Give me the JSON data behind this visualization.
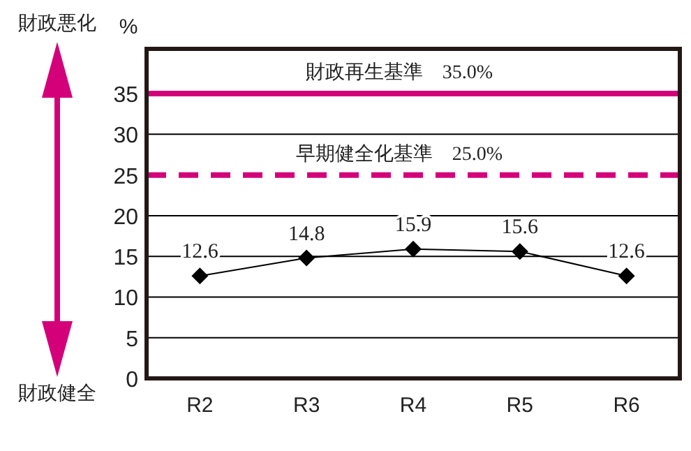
{
  "chart_data": {
    "type": "line",
    "ylabel": "%",
    "categories": [
      "R2",
      "R3",
      "R4",
      "R5",
      "R6"
    ],
    "series": [
      {
        "color": "#000000",
        "values": [
          12.6,
          14.8,
          15.9,
          15.6,
          12.6
        ]
      }
    ],
    "data_labels": true,
    "marker": "diamond",
    "line_style": "solid",
    "grid": "y",
    "ylim": [
      0,
      40.5
    ],
    "yticks": [
      0,
      5,
      10,
      15,
      20,
      25,
      30,
      35
    ],
    "ref_lines": [
      {
        "axis": "y",
        "value": 35,
        "label": "財政再生基準　35.0%",
        "color": "#d4007a",
        "line_style": "solid"
      },
      {
        "axis": "y",
        "value": 25,
        "label": "早期健全化基準　25.0%",
        "color": "#d4007a",
        "line_style": "dashed"
      }
    ],
    "annotations": [
      "財政悪化",
      "財政健全"
    ]
  }
}
